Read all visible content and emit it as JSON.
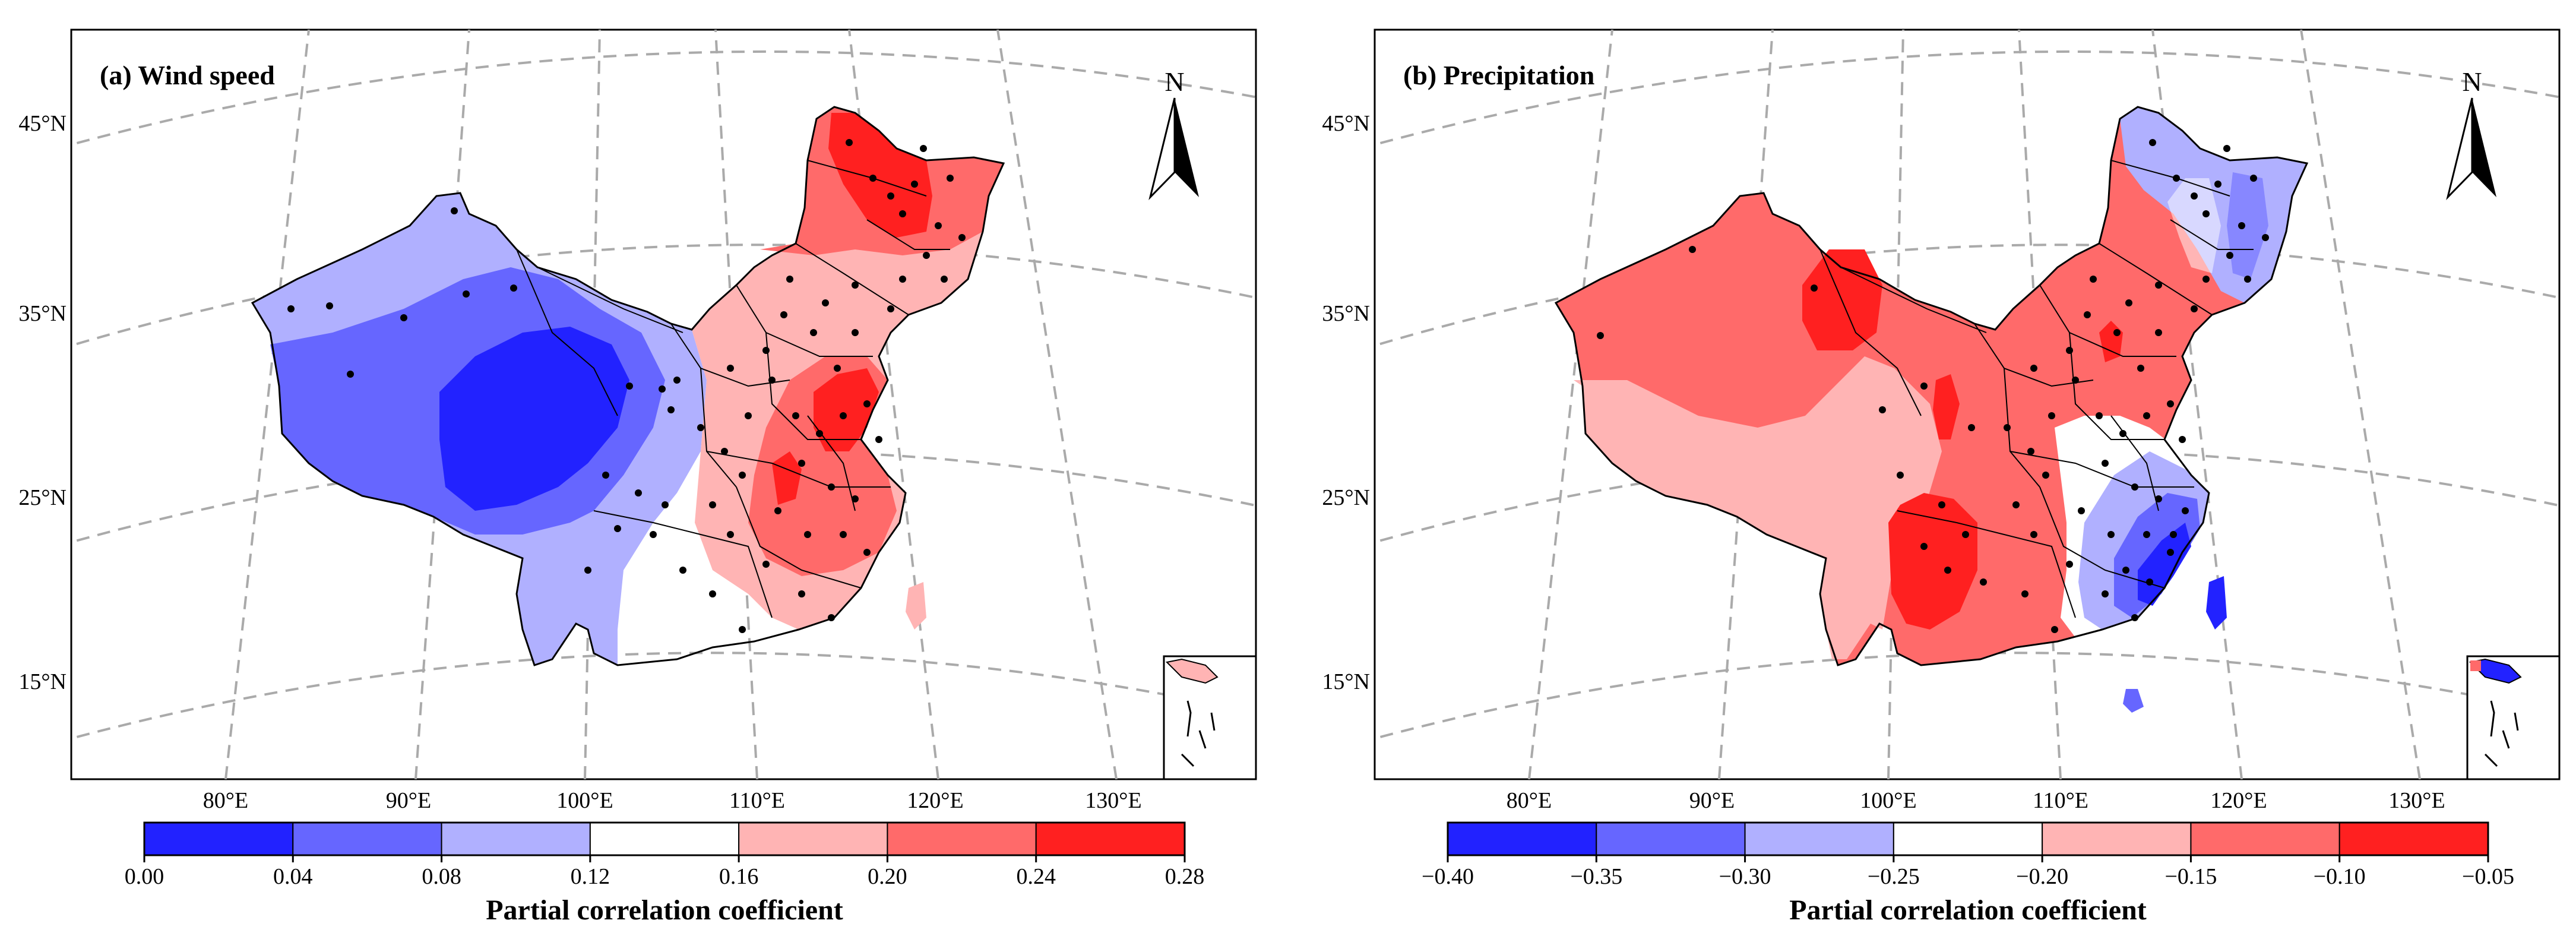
{
  "panels": [
    {
      "id": "a",
      "title": "(a) Wind speed",
      "north_label": "N",
      "lat_labels": [
        "45°N",
        "35°N",
        "25°N",
        "15°N"
      ],
      "lon_labels": [
        "80°E",
        "90°E",
        "100°E",
        "110°E",
        "120°E",
        "130°E"
      ],
      "colorbar": {
        "title": "Partial correlation coefficient",
        "ticks": [
          "0.00",
          "0.04",
          "0.08",
          "0.12",
          "0.16",
          "0.20",
          "0.24",
          "0.28"
        ],
        "colors": [
          "#2222ff",
          "#6666ff",
          "#b0b0ff",
          "#ffffff",
          "#ffb4b4",
          "#ff6a6a",
          "#ff2020"
        ]
      }
    },
    {
      "id": "b",
      "title": "(b) Precipitation",
      "north_label": "N",
      "lat_labels": [
        "45°N",
        "35°N",
        "25°N",
        "15°N"
      ],
      "lon_labels": [
        "80°E",
        "90°E",
        "100°E",
        "110°E",
        "120°E",
        "130°E"
      ],
      "colorbar": {
        "title": "Partial correlation coefficient",
        "ticks": [
          "−0.40",
          "−0.35",
          "−0.30",
          "−0.25",
          "−0.20",
          "−0.15",
          "−0.10",
          "−0.05"
        ],
        "colors": [
          "#2222ff",
          "#6666ff",
          "#b0b0ff",
          "#ffffff",
          "#ffb4b4",
          "#ff6a6a",
          "#ff2020"
        ]
      }
    }
  ]
}
